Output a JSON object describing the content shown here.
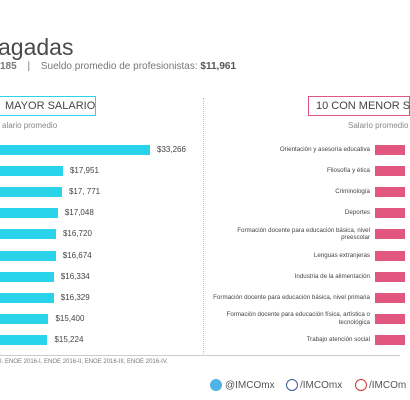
{
  "header": {
    "title": "agadas",
    "subtitle": [
      "185",
      "|",
      "Sueldo promedio de profesionistas:",
      "$11,961"
    ]
  },
  "footer": {
    "source": "I. ENOE 2016-I, ENOE 2016-II, ENOE 2016-III, ENOE 2016-IV.",
    "social": [
      "@IMCOmx",
      "/IMCOmx",
      "/IMCOm"
    ]
  },
  "chart_data": [
    {
      "type": "bar",
      "title": "MAYOR SALARIO",
      "subtitle": "alario promedio",
      "color": "#29d3ea",
      "values": [
        33266,
        17951,
        17771,
        17048,
        16720,
        16674,
        16334,
        16329,
        15400,
        15224
      ],
      "value_labels": [
        "$33,266",
        "$17,951",
        "$17, 771",
        "$17,048",
        "$16,720",
        "$16,674",
        "$16,334",
        "$16,329",
        "$15,400",
        "$15,224"
      ]
    },
    {
      "type": "bar",
      "title": "10 CON MENOR S",
      "subtitle": "Salario promedio",
      "color": "#e2577f",
      "categories": [
        "Orientación y asesoría educativa",
        "Filosofía y ética",
        "Criminología",
        "Deportes",
        "Formación docente para educación básica, nivel preescolar",
        "Lenguas extranjeras",
        "Industria de la alimentación",
        "Formación docente para educación básica, nivel primaria",
        "Formación docente para educación física, artística o tecnológica",
        "Trabajo atención social"
      ]
    }
  ]
}
